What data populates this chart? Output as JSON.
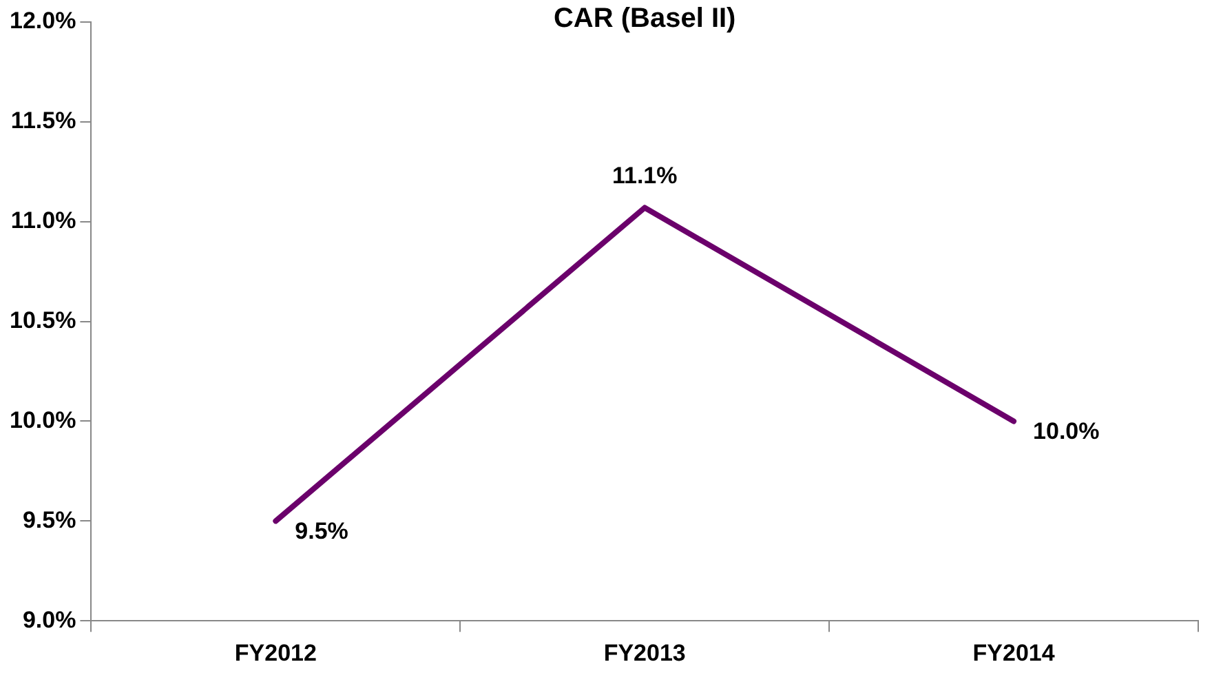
{
  "chart_data": {
    "type": "line",
    "title": "CAR (Basel II)",
    "categories": [
      "FY2012",
      "FY2013",
      "FY2014"
    ],
    "series": [
      {
        "color": "#6b006b",
        "values": [
          9.5,
          11.07,
          10.0
        ],
        "value_labels": [
          "9.5%",
          "11.1%",
          "10.0%"
        ]
      }
    ],
    "ylim": [
      9.0,
      12.0
    ],
    "yticks": [
      {
        "value": 9.0,
        "label": "9.0%"
      },
      {
        "value": 9.5,
        "label": "9.5%"
      },
      {
        "value": 10.0,
        "label": "10.0%"
      },
      {
        "value": 10.5,
        "label": "10.5%"
      },
      {
        "value": 11.0,
        "label": "11.0%"
      },
      {
        "value": 11.5,
        "label": "11.5%"
      },
      {
        "value": 12.0,
        "label": "12.0%"
      }
    ],
    "grid": false,
    "legend": false
  }
}
